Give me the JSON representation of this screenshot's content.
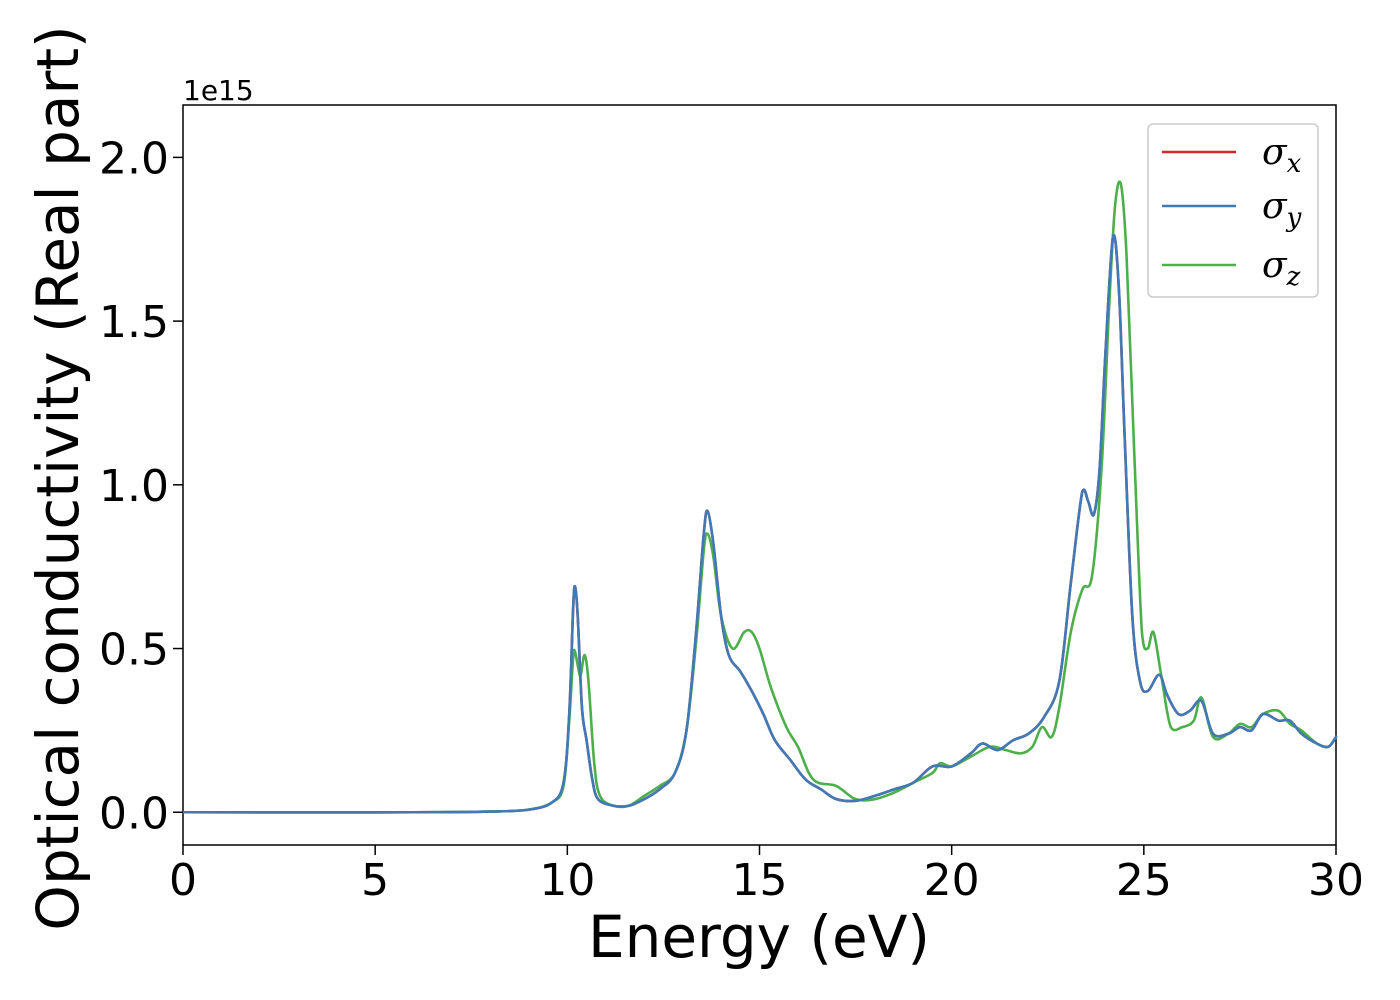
{
  "chart_data": {
    "type": "line",
    "title": "",
    "xlabel": "Energy (eV)",
    "ylabel": "Optical conductivity (Real part)",
    "y_offset_label": "1e15",
    "xlim": [
      0,
      30
    ],
    "ylim": [
      -0.1,
      2.16
    ],
    "xticks": [
      0,
      5,
      10,
      15,
      20,
      25,
      30
    ],
    "yticks": [
      "0.0",
      "0.5",
      "1.0",
      "1.5",
      "2.0"
    ],
    "grid": false,
    "legend_position": "top-right",
    "series": [
      {
        "name": "σx",
        "symbol": "σ",
        "subscript": "x",
        "color": "#d62728",
        "points": [
          [
            0,
            0
          ],
          [
            6,
            0
          ],
          [
            8,
            0.002
          ],
          [
            9,
            0.008
          ],
          [
            9.6,
            0.03
          ],
          [
            9.9,
            0.09
          ],
          [
            10.05,
            0.3
          ],
          [
            10.15,
            0.62
          ],
          [
            10.2,
            0.69
          ],
          [
            10.27,
            0.6
          ],
          [
            10.38,
            0.32
          ],
          [
            10.5,
            0.22
          ],
          [
            10.65,
            0.1
          ],
          [
            10.8,
            0.04
          ],
          [
            11.2,
            0.02
          ],
          [
            11.6,
            0.02
          ],
          [
            12,
            0.04
          ],
          [
            12.4,
            0.07
          ],
          [
            12.8,
            0.12
          ],
          [
            13.1,
            0.25
          ],
          [
            13.35,
            0.55
          ],
          [
            13.55,
            0.85
          ],
          [
            13.65,
            0.92
          ],
          [
            13.8,
            0.82
          ],
          [
            14,
            0.6
          ],
          [
            14.2,
            0.48
          ],
          [
            14.5,
            0.43
          ],
          [
            14.8,
            0.37
          ],
          [
            15.1,
            0.3
          ],
          [
            15.4,
            0.22
          ],
          [
            15.8,
            0.16
          ],
          [
            16.2,
            0.1
          ],
          [
            16.6,
            0.07
          ],
          [
            17,
            0.04
          ],
          [
            17.5,
            0.035
          ],
          [
            18,
            0.05
          ],
          [
            18.5,
            0.07
          ],
          [
            19,
            0.09
          ],
          [
            19.5,
            0.14
          ],
          [
            20,
            0.14
          ],
          [
            20.5,
            0.18
          ],
          [
            20.8,
            0.21
          ],
          [
            21.2,
            0.19
          ],
          [
            21.6,
            0.22
          ],
          [
            22,
            0.24
          ],
          [
            22.4,
            0.29
          ],
          [
            22.8,
            0.4
          ],
          [
            23.1,
            0.7
          ],
          [
            23.4,
            0.98
          ],
          [
            23.55,
            0.95
          ],
          [
            23.7,
            0.91
          ],
          [
            23.85,
            1.05
          ],
          [
            24,
            1.4
          ],
          [
            24.2,
            1.76
          ],
          [
            24.35,
            1.6
          ],
          [
            24.5,
            1.15
          ],
          [
            24.7,
            0.6
          ],
          [
            24.9,
            0.4
          ],
          [
            25.1,
            0.37
          ],
          [
            25.4,
            0.42
          ],
          [
            25.6,
            0.36
          ],
          [
            25.9,
            0.3
          ],
          [
            26.2,
            0.31
          ],
          [
            26.5,
            0.34
          ],
          [
            26.8,
            0.24
          ],
          [
            27.2,
            0.24
          ],
          [
            27.5,
            0.26
          ],
          [
            27.8,
            0.25
          ],
          [
            28.1,
            0.3
          ],
          [
            28.5,
            0.28
          ],
          [
            28.8,
            0.28
          ],
          [
            29.1,
            0.24
          ],
          [
            29.5,
            0.21
          ],
          [
            29.8,
            0.2
          ],
          [
            30,
            0.23
          ]
        ]
      },
      {
        "name": "σy",
        "symbol": "σ",
        "subscript": "y",
        "color": "#3f7ab7",
        "points": [
          [
            0,
            0
          ],
          [
            6,
            0
          ],
          [
            8,
            0.002
          ],
          [
            9,
            0.008
          ],
          [
            9.6,
            0.03
          ],
          [
            9.9,
            0.09
          ],
          [
            10.05,
            0.3
          ],
          [
            10.15,
            0.62
          ],
          [
            10.2,
            0.69
          ],
          [
            10.27,
            0.6
          ],
          [
            10.38,
            0.32
          ],
          [
            10.5,
            0.22
          ],
          [
            10.65,
            0.1
          ],
          [
            10.8,
            0.04
          ],
          [
            11.2,
            0.02
          ],
          [
            11.6,
            0.02
          ],
          [
            12,
            0.04
          ],
          [
            12.4,
            0.07
          ],
          [
            12.8,
            0.12
          ],
          [
            13.1,
            0.25
          ],
          [
            13.35,
            0.55
          ],
          [
            13.55,
            0.85
          ],
          [
            13.65,
            0.92
          ],
          [
            13.8,
            0.82
          ],
          [
            14,
            0.6
          ],
          [
            14.2,
            0.48
          ],
          [
            14.5,
            0.43
          ],
          [
            14.8,
            0.37
          ],
          [
            15.1,
            0.3
          ],
          [
            15.4,
            0.22
          ],
          [
            15.8,
            0.16
          ],
          [
            16.2,
            0.1
          ],
          [
            16.6,
            0.07
          ],
          [
            17,
            0.04
          ],
          [
            17.5,
            0.035
          ],
          [
            18,
            0.05
          ],
          [
            18.5,
            0.07
          ],
          [
            19,
            0.09
          ],
          [
            19.5,
            0.14
          ],
          [
            20,
            0.14
          ],
          [
            20.5,
            0.18
          ],
          [
            20.8,
            0.21
          ],
          [
            21.2,
            0.19
          ],
          [
            21.6,
            0.22
          ],
          [
            22,
            0.24
          ],
          [
            22.4,
            0.29
          ],
          [
            22.8,
            0.4
          ],
          [
            23.1,
            0.7
          ],
          [
            23.4,
            0.98
          ],
          [
            23.55,
            0.95
          ],
          [
            23.7,
            0.91
          ],
          [
            23.85,
            1.05
          ],
          [
            24,
            1.4
          ],
          [
            24.2,
            1.76
          ],
          [
            24.35,
            1.6
          ],
          [
            24.5,
            1.15
          ],
          [
            24.7,
            0.6
          ],
          [
            24.9,
            0.4
          ],
          [
            25.1,
            0.37
          ],
          [
            25.4,
            0.42
          ],
          [
            25.6,
            0.36
          ],
          [
            25.9,
            0.3
          ],
          [
            26.2,
            0.31
          ],
          [
            26.5,
            0.34
          ],
          [
            26.8,
            0.24
          ],
          [
            27.2,
            0.24
          ],
          [
            27.5,
            0.26
          ],
          [
            27.8,
            0.25
          ],
          [
            28.1,
            0.3
          ],
          [
            28.5,
            0.28
          ],
          [
            28.8,
            0.28
          ],
          [
            29.1,
            0.24
          ],
          [
            29.5,
            0.21
          ],
          [
            29.8,
            0.2
          ],
          [
            30,
            0.23
          ]
        ]
      },
      {
        "name": "σz",
        "symbol": "σ",
        "subscript": "z",
        "color": "#4daf4a",
        "points": [
          [
            0,
            0
          ],
          [
            6,
            0
          ],
          [
            8,
            0.002
          ],
          [
            9,
            0.008
          ],
          [
            9.6,
            0.03
          ],
          [
            9.9,
            0.08
          ],
          [
            10.05,
            0.28
          ],
          [
            10.15,
            0.47
          ],
          [
            10.2,
            0.49
          ],
          [
            10.3,
            0.43
          ],
          [
            10.35,
            0.42
          ],
          [
            10.45,
            0.48
          ],
          [
            10.55,
            0.4
          ],
          [
            10.7,
            0.15
          ],
          [
            10.85,
            0.05
          ],
          [
            11.2,
            0.02
          ],
          [
            11.6,
            0.02
          ],
          [
            12,
            0.05
          ],
          [
            12.4,
            0.08
          ],
          [
            12.8,
            0.12
          ],
          [
            13.1,
            0.25
          ],
          [
            13.35,
            0.52
          ],
          [
            13.55,
            0.8
          ],
          [
            13.65,
            0.85
          ],
          [
            13.8,
            0.78
          ],
          [
            14,
            0.6
          ],
          [
            14.3,
            0.5
          ],
          [
            14.6,
            0.55
          ],
          [
            14.8,
            0.55
          ],
          [
            15,
            0.5
          ],
          [
            15.3,
            0.38
          ],
          [
            15.7,
            0.26
          ],
          [
            16,
            0.2
          ],
          [
            16.4,
            0.1
          ],
          [
            17,
            0.08
          ],
          [
            17.5,
            0.04
          ],
          [
            18,
            0.04
          ],
          [
            18.5,
            0.06
          ],
          [
            19,
            0.09
          ],
          [
            19.5,
            0.12
          ],
          [
            19.7,
            0.15
          ],
          [
            20,
            0.14
          ],
          [
            20.5,
            0.17
          ],
          [
            21,
            0.2
          ],
          [
            21.4,
            0.19
          ],
          [
            21.8,
            0.18
          ],
          [
            22.1,
            0.2
          ],
          [
            22.35,
            0.26
          ],
          [
            22.6,
            0.23
          ],
          [
            22.8,
            0.32
          ],
          [
            23.1,
            0.55
          ],
          [
            23.4,
            0.68
          ],
          [
            23.65,
            0.72
          ],
          [
            23.9,
            1.05
          ],
          [
            24.1,
            1.55
          ],
          [
            24.25,
            1.85
          ],
          [
            24.4,
            1.92
          ],
          [
            24.55,
            1.7
          ],
          [
            24.75,
            1.1
          ],
          [
            24.95,
            0.55
          ],
          [
            25.1,
            0.5
          ],
          [
            25.25,
            0.55
          ],
          [
            25.45,
            0.42
          ],
          [
            25.7,
            0.26
          ],
          [
            26,
            0.26
          ],
          [
            26.3,
            0.28
          ],
          [
            26.5,
            0.35
          ],
          [
            26.8,
            0.23
          ],
          [
            27.2,
            0.24
          ],
          [
            27.5,
            0.27
          ],
          [
            27.8,
            0.26
          ],
          [
            28.1,
            0.3
          ],
          [
            28.5,
            0.31
          ],
          [
            28.8,
            0.27
          ],
          [
            29.1,
            0.25
          ],
          [
            29.5,
            0.21
          ],
          [
            29.8,
            0.2
          ],
          [
            30,
            0.23
          ]
        ]
      }
    ]
  }
}
